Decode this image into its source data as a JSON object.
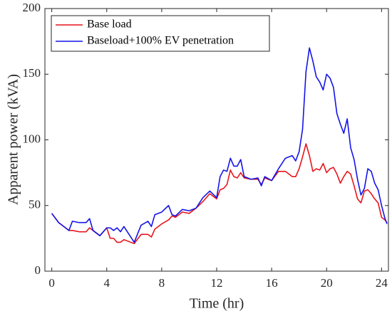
{
  "chart_data": {
    "type": "line",
    "xlabel": "Time (hr)",
    "ylabel": "Apparent power (kVA)",
    "x": [
      0,
      0.5,
      1,
      1.25,
      1.5,
      2,
      2.5,
      2.75,
      3,
      3.5,
      4,
      4.25,
      4.5,
      4.75,
      5,
      5.25,
      5.5,
      6,
      6.5,
      7,
      7.25,
      7.5,
      8,
      8.5,
      8.75,
      9,
      9.5,
      10,
      10.5,
      11,
      11.5,
      12,
      12.25,
      12.5,
      12.75,
      13,
      13.25,
      13.5,
      13.75,
      14,
      14.5,
      15,
      15.25,
      15.5,
      16,
      16.5,
      17,
      17.5,
      17.75,
      18,
      18.25,
      18.5,
      18.75,
      19,
      19.25,
      19.5,
      19.75,
      20,
      20.25,
      20.5,
      20.75,
      21,
      21.25,
      21.5,
      21.75,
      22,
      22.25,
      22.5,
      22.75,
      23,
      23.25,
      23.5,
      23.75,
      24,
      24.25,
      24.4
    ],
    "series": [
      {
        "name": "Base load",
        "color": "#e8141c",
        "values": [
          44,
          37,
          33,
          31,
          31,
          30,
          30,
          33,
          31,
          27,
          33,
          25,
          25,
          22,
          22,
          24,
          23,
          21,
          28,
          28,
          26,
          32,
          36,
          39,
          42,
          41,
          45,
          44,
          48,
          53,
          59,
          55,
          62,
          63,
          66,
          77,
          72,
          71,
          75,
          71,
          70,
          70,
          66,
          71,
          69,
          76,
          76,
          72,
          72,
          78,
          87,
          97,
          88,
          76,
          78,
          77,
          82,
          75,
          78,
          79,
          74,
          67,
          72,
          76,
          74,
          65,
          55,
          52,
          61,
          62,
          59,
          55,
          52,
          41,
          39,
          37
        ]
      },
      {
        "name": "Baseload+100% EV penetration",
        "color": "#1414e8",
        "values": [
          44,
          37,
          33,
          31,
          38,
          37,
          37,
          40,
          31,
          27,
          33,
          33,
          31,
          33,
          30,
          34,
          30,
          22,
          35,
          38,
          34,
          43,
          45,
          50,
          43,
          42,
          47,
          46,
          48,
          56,
          61,
          56,
          72,
          77,
          76,
          86,
          80,
          80,
          85,
          72,
          70,
          71,
          65,
          72,
          69,
          78,
          86,
          88,
          84,
          91,
          108,
          152,
          170,
          160,
          148,
          144,
          138,
          150,
          147,
          140,
          120,
          112,
          105,
          116,
          94,
          85,
          70,
          58,
          63,
          78,
          76,
          67,
          62,
          50,
          40,
          36
        ]
      }
    ],
    "xlim": [
      -0.5,
      24.5
    ],
    "xticks": [
      0,
      4,
      8,
      12,
      16,
      20,
      24
    ],
    "ylim": [
      0,
      200
    ],
    "yticks": [
      0,
      50,
      100,
      150,
      200
    ],
    "legend": "top-left"
  }
}
